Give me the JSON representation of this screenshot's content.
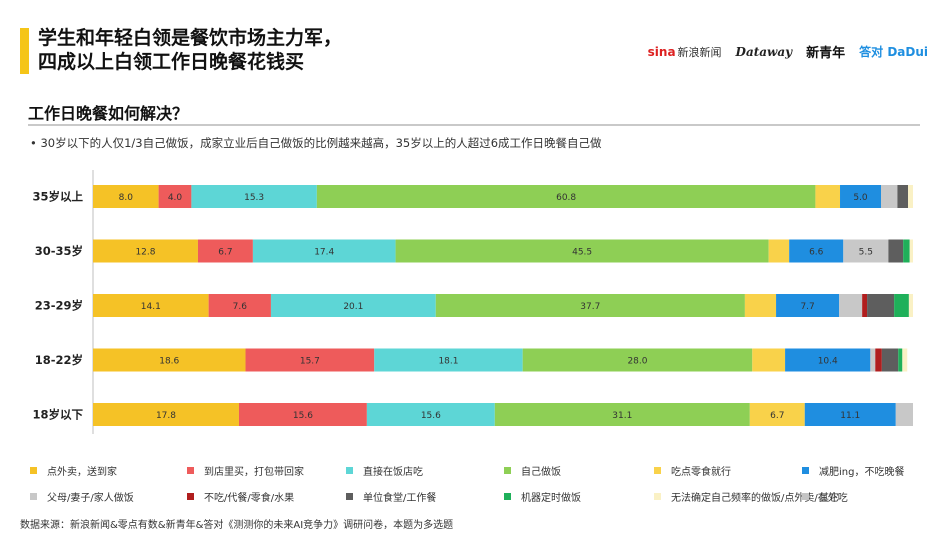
{
  "title": {
    "line1": "学生和年轻白领是餐饮市场主力军，",
    "line2": "四成以上白领工作日晚餐花钱买"
  },
  "logos": {
    "sina": "sina",
    "sina_sub": "新浪新闻",
    "dz": "Dataway",
    "xqn": "新青年",
    "dd": "答对 DaDui"
  },
  "section_title": "工作日晚餐如何解决？",
  "bullet": "•    30岁以下的人仅1/3自己做饭，成家立业后自己做饭的比例越来越高，35岁以上的人超过6成工作日晚餐自己做",
  "source": "数据来源：新浪新闻&零点有数&新青年&答对《测测你的未来AI竞争力》调研问卷，本题为多选题",
  "chart_data": {
    "type": "bar",
    "orientation": "horizontal",
    "stacked": true,
    "categories": [
      "35岁以上",
      "30-35岁",
      "23-29岁",
      "18-22岁",
      "18岁以下"
    ],
    "series": [
      {
        "name": "点外卖，送到家",
        "color": "#f5c226",
        "values": [
          8.0,
          12.8,
          14.1,
          18.6,
          17.8
        ]
      },
      {
        "name": "到店里买，打包带回家",
        "color": "#ee5b5b",
        "values": [
          4.0,
          6.7,
          7.6,
          15.7,
          15.6
        ]
      },
      {
        "name": "直接在饭店吃",
        "color": "#5dd6d6",
        "values": [
          15.3,
          17.4,
          20.1,
          18.1,
          15.6
        ]
      },
      {
        "name": "自己做饭",
        "color": "#8ecf55",
        "values": [
          60.8,
          45.5,
          37.7,
          28.0,
          31.1
        ]
      },
      {
        "name": "吃点零食就行",
        "color": "#f9d24a",
        "values": [
          3.0,
          2.5,
          3.8,
          4.0,
          6.7
        ]
      },
      {
        "name": "减肥ing，不吃晚餐",
        "color": "#1f8ee0",
        "values": [
          5.0,
          6.6,
          7.7,
          10.4,
          11.1
        ]
      },
      {
        "name": "父母/妻子/家人做饭",
        "color": "#c8c8c8",
        "values": [
          2.0,
          5.5,
          2.8,
          0.6,
          2.1
        ]
      },
      {
        "name": "不吃/代餐/零食/水果",
        "color": "#b01e1e",
        "values": [
          0.0,
          0.0,
          0.6,
          0.8,
          0.0
        ]
      },
      {
        "name": "单位食堂/工作餐",
        "color": "#5e5e5e",
        "values": [
          1.3,
          1.8,
          3.3,
          2.0,
          0.0
        ]
      },
      {
        "name": "机器定时做饭",
        "color": "#1fb05a",
        "values": [
          0.0,
          0.8,
          1.8,
          0.5,
          0.0
        ]
      },
      {
        "name": "无法确定自己频率的做饭/点外卖/在外吃",
        "color": "#faf1c5",
        "values": [
          0.6,
          0.4,
          0.5,
          0.6,
          0.0
        ]
      },
      {
        "name": "其它",
        "color": "#c4c4c4",
        "values": [
          0.0,
          0.0,
          0.0,
          0.0,
          0.0
        ]
      }
    ],
    "data_labels": [
      [
        "8.0",
        "4.0",
        "15.3",
        "60.8",
        "",
        "5.0",
        "",
        "",
        "",
        "",
        "",
        ""
      ],
      [
        "12.8",
        "6.7",
        "17.4",
        "45.5",
        "",
        "6.6",
        "5.5",
        "",
        "",
        "",
        "",
        ""
      ],
      [
        "14.1",
        "7.6",
        "20.1",
        "37.7",
        "",
        "7.7",
        "",
        "",
        "",
        "",
        "",
        ""
      ],
      [
        "18.6",
        "15.7",
        "18.1",
        "28.0",
        "",
        "10.4",
        "",
        "",
        "",
        "",
        "",
        ""
      ],
      [
        "17.8",
        "15.6",
        "15.6",
        "31.1",
        "6.7",
        "11.1",
        "",
        "",
        "",
        "",
        "",
        ""
      ]
    ],
    "xlim": [
      0,
      100
    ],
    "legend_position": "bottom",
    "grid": false
  }
}
